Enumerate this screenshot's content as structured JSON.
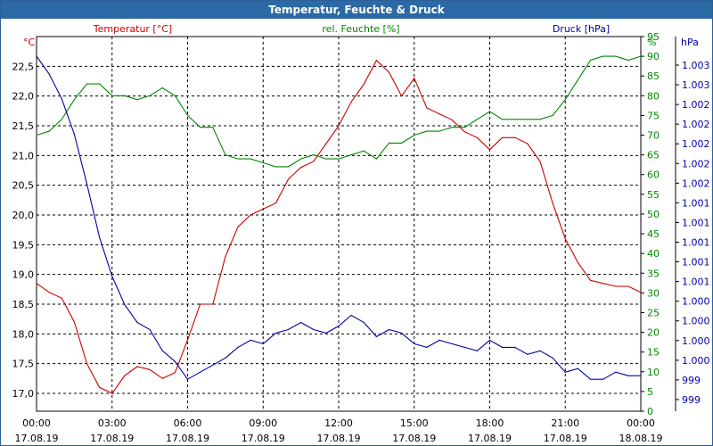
{
  "window": {
    "title": "Temperatur, Feuchte & Druck"
  },
  "colors": {
    "temperature": "#cc0000",
    "humidity": "#008800",
    "pressure": "#0000aa",
    "grid": "#000000",
    "axis_text": "#000000"
  },
  "chart_data": {
    "type": "line",
    "title": "Temperatur, Feuchte & Druck",
    "x_time_labels": [
      "00:00",
      "03:00",
      "06:00",
      "09:00",
      "12:00",
      "15:00",
      "18:00",
      "21:00",
      "00:00"
    ],
    "x_date_labels": [
      "17.08.19",
      "17.08.19",
      "17.08.19",
      "17.08.19",
      "17.08.19",
      "17.08.19",
      "17.08.19",
      "17.08.19",
      "18.08.19"
    ],
    "x_range_hours": [
      0,
      24
    ],
    "axes": {
      "temperature": {
        "label": "Temperatur [°C]",
        "unit": "°C",
        "ylim": [
          16.7,
          23.0
        ],
        "tick_values": [
          17.0,
          17.5,
          18.0,
          18.5,
          19.0,
          19.5,
          20.0,
          20.5,
          21.0,
          21.5,
          22.0,
          22.5
        ],
        "tick_labels": [
          "17,0",
          "17,5",
          "18,0",
          "18,5",
          "19,0",
          "19,5",
          "20,0",
          "20,5",
          "21,0",
          "21,5",
          "22,0",
          "22,5"
        ]
      },
      "humidity": {
        "label": "rel. Feuchte [%]",
        "unit": "%",
        "ylim": [
          0,
          95
        ],
        "tick_values": [
          0,
          5,
          10,
          15,
          20,
          25,
          30,
          35,
          40,
          45,
          50,
          55,
          60,
          65,
          70,
          75,
          80,
          85,
          90,
          95
        ],
        "tick_labels": [
          "0",
          "5",
          "10",
          "15",
          "20",
          "25",
          "30",
          "35",
          "40",
          "45",
          "50",
          "55",
          "60",
          "65",
          "70",
          "75",
          "80",
          "85",
          "90",
          "95"
        ]
      },
      "pressure": {
        "label": "Druck [hPa]",
        "unit": "hPa",
        "tick_labels": [
          "1.003",
          "1.003",
          "1.002",
          "1.002",
          "1.002",
          "1.002",
          "1.002",
          "1.001",
          "1.001",
          "1.001",
          "1.001",
          "1.001",
          "1.000",
          "1.000",
          "1.000",
          "1.000",
          "999",
          "999"
        ]
      }
    },
    "series": [
      {
        "name": "Temperatur [°C]",
        "axis": "temperature",
        "color": "#cc0000",
        "x": [
          0,
          0.5,
          1,
          1.5,
          2,
          2.5,
          3,
          3.5,
          4,
          4.5,
          5,
          5.5,
          6,
          6.5,
          7,
          7.5,
          8,
          8.5,
          9,
          9.5,
          10,
          10.5,
          11,
          11.5,
          12,
          12.5,
          13,
          13.5,
          14,
          14.5,
          15,
          15.5,
          16,
          16.5,
          17,
          17.5,
          18,
          18.5,
          19,
          19.5,
          20,
          20.5,
          21,
          21.5,
          22,
          22.5,
          23,
          23.5,
          24
        ],
        "values": [
          18.85,
          18.7,
          18.6,
          18.2,
          17.5,
          17.1,
          17.0,
          17.3,
          17.45,
          17.4,
          17.25,
          17.35,
          17.9,
          18.5,
          18.5,
          19.3,
          19.8,
          20.0,
          20.1,
          20.2,
          20.6,
          20.8,
          20.9,
          21.2,
          21.5,
          21.9,
          22.2,
          22.6,
          22.4,
          22.0,
          22.3,
          21.8,
          21.7,
          21.6,
          21.4,
          21.3,
          21.1,
          21.3,
          21.3,
          21.2,
          20.9,
          20.2,
          19.6,
          19.2,
          18.9,
          18.85,
          18.8,
          18.8,
          18.7
        ]
      },
      {
        "name": "rel. Feuchte [%]",
        "axis": "humidity",
        "color": "#008800",
        "x": [
          0,
          0.5,
          1,
          1.5,
          2,
          2.5,
          3,
          3.5,
          4,
          4.5,
          5,
          5.5,
          6,
          6.5,
          7,
          7.5,
          8,
          8.5,
          9,
          9.5,
          10,
          10.5,
          11,
          11.5,
          12,
          12.5,
          13,
          13.5,
          14,
          14.5,
          15,
          15.5,
          16,
          16.5,
          17,
          17.5,
          18,
          18.5,
          19,
          19.5,
          20,
          20.5,
          21,
          21.5,
          22,
          22.5,
          23,
          23.5,
          24
        ],
        "values": [
          70,
          71,
          74,
          79,
          83,
          83,
          80,
          80,
          79,
          80,
          82,
          80,
          75,
          72,
          72,
          65,
          64,
          64,
          63,
          62,
          62,
          64,
          65,
          64,
          64,
          65,
          66,
          64,
          68,
          68,
          70,
          71,
          71,
          72,
          72,
          74,
          76,
          74,
          74,
          74,
          74,
          75,
          79,
          84,
          89,
          90,
          90,
          89,
          90
        ]
      },
      {
        "name": "Druck [hPa]",
        "axis": "pressure",
        "color": "#0000aa",
        "pressure_scale": "relative 0-100 (top = highest)",
        "x": [
          0,
          0.5,
          1,
          1.5,
          2,
          2.5,
          3,
          3.5,
          4,
          4.5,
          5,
          5.5,
          6,
          6.5,
          7,
          7.5,
          8,
          8.5,
          9,
          9.5,
          10,
          10.5,
          11,
          11.5,
          12,
          12.5,
          13,
          13.5,
          14,
          14.5,
          15,
          15.5,
          16,
          16.5,
          17,
          17.5,
          18,
          18.5,
          19,
          19.5,
          20,
          20.5,
          21,
          21.5,
          22,
          22.5,
          23,
          23.5,
          24
        ],
        "values": [
          100,
          95,
          88,
          78,
          64,
          49,
          38,
          30,
          25,
          23,
          17,
          14,
          9,
          11,
          13,
          15,
          18,
          20,
          19,
          22,
          23,
          25,
          23,
          22,
          24,
          27,
          25,
          21,
          23,
          22,
          19,
          18,
          20,
          19,
          18,
          17,
          20,
          18,
          18,
          16,
          17,
          15,
          11,
          12,
          9,
          9,
          11,
          10,
          10
        ]
      }
    ],
    "grid": true,
    "legend": "top, one label per axis"
  }
}
